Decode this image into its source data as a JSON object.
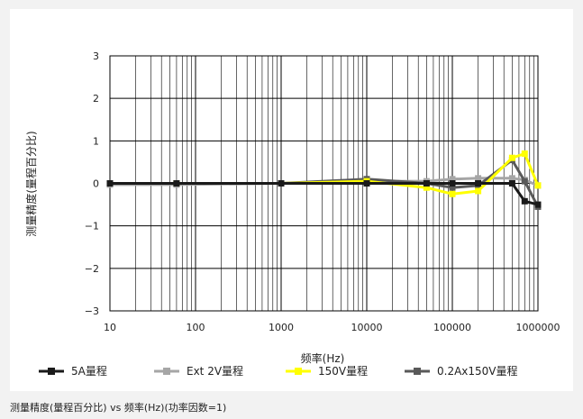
{
  "chart_data": {
    "type": "line",
    "xscale": "log",
    "xlabel": "频率(Hz)",
    "ylabel": "测量精度(量程百分比)",
    "xlim": [
      10,
      1000000
    ],
    "ylim": [
      -3,
      3
    ],
    "xticks": [
      10,
      100,
      1000,
      10000,
      100000,
      1000000
    ],
    "xtick_labels": [
      "10",
      "100",
      "1000",
      "10000",
      "100000",
      "1000000"
    ],
    "yticks": [
      -3,
      -2,
      -1,
      0,
      1,
      2,
      3
    ],
    "ytick_labels": [
      "−3",
      "−2",
      "−1",
      "0",
      "1",
      "2",
      "3"
    ],
    "grid": true,
    "legend_position": "bottom",
    "series": [
      {
        "name": "5A量程",
        "color": "#1a1a1a",
        "x": [
          10,
          60,
          1000,
          10000,
          50000,
          100000,
          200000,
          500000,
          700000,
          1000000
        ],
        "y": [
          0,
          0,
          0,
          0,
          0,
          0,
          0,
          0,
          -0.42,
          -0.5
        ]
      },
      {
        "name": "Ext 2V量程",
        "color": "#a6a6a6",
        "x": [
          10,
          60,
          1000,
          10000,
          50000,
          100000,
          200000,
          500000,
          700000,
          1000000
        ],
        "y": [
          -0.03,
          -0.03,
          0,
          0.05,
          0.05,
          0.1,
          0.12,
          0.12,
          0.08,
          -0.05
        ]
      },
      {
        "name": "150V量程",
        "color": "#ffff00",
        "x": [
          10,
          60,
          1000,
          10000,
          50000,
          100000,
          200000,
          500000,
          700000,
          1000000
        ],
        "y": [
          0,
          0,
          0,
          0.05,
          -0.1,
          -0.25,
          -0.18,
          0.6,
          0.7,
          -0.05
        ]
      },
      {
        "name": "0.2Ax150V量程",
        "color": "#595959",
        "x": [
          10,
          60,
          1000,
          10000,
          50000,
          100000,
          200000,
          500000,
          700000,
          1000000
        ],
        "y": [
          0,
          0,
          0,
          0.1,
          0,
          -0.1,
          -0.05,
          0.55,
          0.05,
          -0.55
        ]
      }
    ]
  },
  "caption": "测量精度(量程百分比) vs 频率(Hz)(功率因数=1)"
}
